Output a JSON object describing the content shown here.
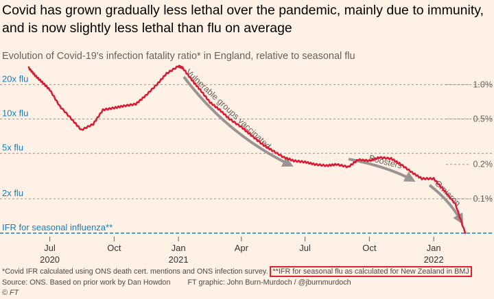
{
  "header": {
    "title": "Covid has grown gradually less lethal over the pandemic, mainly due to immunity, and is now slightly less lethal than flu on average",
    "subtitle": "Evolution of Covid-19's infection fatality ratio* in England, relative to seasonal flu"
  },
  "colors": {
    "line": "#d71d35",
    "flu": "#0f7fbd",
    "annotation": "#999392",
    "highlight": "#e0202c",
    "background": "#fff1e5"
  },
  "chart_data": {
    "type": "line",
    "scale": "log",
    "ylabel_left": [
      "IFR for seasonal influenza**",
      "2x flu",
      "5x flu",
      "10x flu",
      "20x flu"
    ],
    "yticks_left": [
      1,
      2,
      5,
      10,
      20
    ],
    "ylabel_right": [
      "0.1%",
      "0.2%",
      "0.5%",
      "1.0%"
    ],
    "yticks_right_pct": [
      0.1,
      0.2,
      0.5,
      1.0
    ],
    "flu_ifr_pct": 0.05,
    "xticks": [
      {
        "date": "2020-07-01",
        "label": "Jul",
        "year": "2020"
      },
      {
        "date": "2020-10-01",
        "label": "Oct",
        "year": ""
      },
      {
        "date": "2021-01-01",
        "label": "Jan",
        "year": "2021"
      },
      {
        "date": "2021-04-01",
        "label": "Apr",
        "year": ""
      },
      {
        "date": "2021-07-01",
        "label": "Jul",
        "year": ""
      },
      {
        "date": "2021-10-01",
        "label": "Oct",
        "year": ""
      },
      {
        "date": "2022-01-01",
        "label": "Jan",
        "year": "2022"
      }
    ],
    "annotations": [
      "Vulnerable groups vaccinated",
      "Boosters",
      "Omicron"
    ],
    "series": [
      {
        "name": "",
        "x": [
          "2020-06-01",
          "2020-06-10",
          "2020-06-20",
          "2020-07-01",
          "2020-07-15",
          "2020-08-01",
          "2020-08-15",
          "2020-09-01",
          "2020-09-15",
          "2020-10-01",
          "2020-10-15",
          "2020-11-01",
          "2020-11-15",
          "2020-12-01",
          "2020-12-15",
          "2021-01-01",
          "2021-01-07",
          "2021-01-20",
          "2021-02-01",
          "2021-02-15",
          "2021-03-01",
          "2021-03-15",
          "2021-04-01",
          "2021-04-15",
          "2021-05-01",
          "2021-05-15",
          "2021-06-01",
          "2021-06-15",
          "2021-07-01",
          "2021-07-15",
          "2021-08-01",
          "2021-08-15",
          "2021-09-01",
          "2021-09-15",
          "2021-10-01",
          "2021-10-15",
          "2021-11-01",
          "2021-11-15",
          "2021-12-01",
          "2021-12-15",
          "2022-01-01",
          "2022-01-15",
          "2022-02-01",
          "2022-02-15"
        ],
        "y": [
          28,
          24,
          21,
          18,
          13,
          10,
          8,
          9,
          12,
          12.5,
          13,
          13.5,
          16,
          20,
          25,
          29,
          28,
          22,
          18,
          14,
          12,
          10,
          8.5,
          7.2,
          6.0,
          5.3,
          4.6,
          4.3,
          4.2,
          4.0,
          3.9,
          4.0,
          3.8,
          4.4,
          4.3,
          4.6,
          4.5,
          4.0,
          3.4,
          3.0,
          3.0,
          2.4,
          1.8,
          1.0
        ]
      }
    ]
  },
  "footer": {
    "note": "*Covid IFR calculated using ONS death cert. mentions and ONS infection survey.",
    "note_highlight": "**IFR for seasonal flu as calculated for New Zealand in BMJ",
    "source": "Source: ONS. Based on prior work by Dan Howdon",
    "credit": "FT graphic: John Burn-Murdoch / @jburnmurdoch",
    "copyright": "© FT"
  }
}
